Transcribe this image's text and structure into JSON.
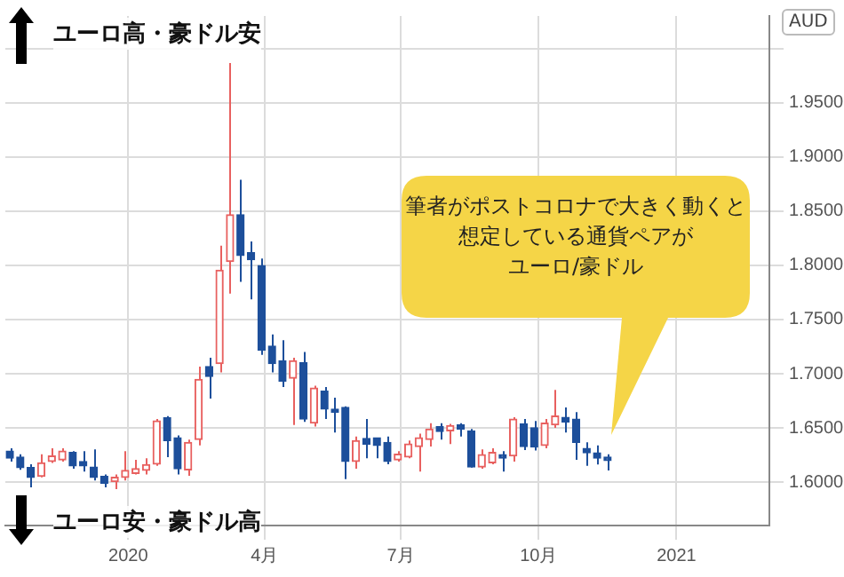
{
  "chart_data": {
    "type": "candlestick",
    "ylabel": "AUD",
    "annotations": [
      "ユーロ高・豪ドル安",
      "ユーロ安・豪ドル高",
      "筆者がポストコロナで大きく動くと",
      "想定している通貨ペアが",
      "ユーロ/豪ドル"
    ],
    "x": [
      "2019-10-14",
      "2019-10-21",
      "2019-10-28",
      "2019-11-04",
      "2019-11-11",
      "2019-11-18",
      "2019-11-25",
      "2019-12-02",
      "2019-12-09",
      "2019-12-16",
      "2019-12-23",
      "2019-12-30",
      "2020-01-06",
      "2020-01-13",
      "2020-01-20",
      "2020-01-27",
      "2020-02-03",
      "2020-02-10",
      "2020-02-17",
      "2020-02-24",
      "2020-03-02",
      "2020-03-09",
      "2020-03-16",
      "2020-03-23",
      "2020-03-30",
      "2020-04-06",
      "2020-04-13",
      "2020-04-20",
      "2020-04-27",
      "2020-05-04",
      "2020-05-11",
      "2020-05-18",
      "2020-05-25",
      "2020-06-01",
      "2020-06-08",
      "2020-06-15",
      "2020-06-22",
      "2020-06-29",
      "2020-07-06",
      "2020-07-13",
      "2020-07-20",
      "2020-07-27",
      "2020-08-03",
      "2020-08-10",
      "2020-08-17",
      "2020-08-24",
      "2020-08-31",
      "2020-09-07",
      "2020-09-14",
      "2020-09-21",
      "2020-09-28",
      "2020-10-05",
      "2020-10-12",
      "2020-10-19",
      "2020-10-26",
      "2020-11-02",
      "2020-11-09",
      "2020-11-16"
    ],
    "ohlc": [
      [
        1.6286,
        1.6312,
        1.6189,
        1.6221
      ],
      [
        1.6231,
        1.6258,
        1.6113,
        1.6134
      ],
      [
        1.6134,
        1.6166,
        1.5952,
        1.6044
      ],
      [
        1.6054,
        1.6258,
        1.6044,
        1.6178
      ],
      [
        1.619,
        1.6312,
        1.6178,
        1.6242
      ],
      [
        1.6205,
        1.6312,
        1.619,
        1.6286
      ],
      [
        1.6275,
        1.6286,
        1.6124,
        1.615
      ],
      [
        1.619,
        1.6286,
        1.6097,
        1.615
      ],
      [
        1.614,
        1.6302,
        1.6016,
        1.6044
      ],
      [
        1.6054,
        1.607,
        1.5952,
        1.5989
      ],
      [
        1.6005,
        1.607,
        1.5935,
        1.6044
      ],
      [
        1.6044,
        1.6286,
        1.6016,
        1.6108
      ],
      [
        1.6081,
        1.6205,
        1.607,
        1.6124
      ],
      [
        1.6108,
        1.6221,
        1.607,
        1.6162
      ],
      [
        1.6166,
        1.6582,
        1.615,
        1.6565
      ],
      [
        1.6593,
        1.6609,
        1.6231,
        1.6383
      ],
      [
        1.6409,
        1.6431,
        1.607,
        1.6124
      ],
      [
        1.6113,
        1.6393,
        1.6059,
        1.6367
      ],
      [
        1.6393,
        1.7066,
        1.6339,
        1.6948
      ],
      [
        1.7066,
        1.7147,
        1.6771,
        1.6974
      ],
      [
        1.7093,
        1.8181,
        1.7013,
        1.7955
      ],
      [
        1.8036,
        1.9866,
        1.774,
        1.8467
      ],
      [
        1.8467,
        1.879,
        1.7847,
        1.809
      ],
      [
        1.8116,
        1.822,
        1.7685,
        1.8052
      ],
      [
        1.7998,
        1.8063,
        1.7174,
        1.7217
      ],
      [
        1.7255,
        1.7362,
        1.7013,
        1.7093
      ],
      [
        1.712,
        1.7309,
        1.6877,
        1.6932
      ],
      [
        1.6958,
        1.7147,
        1.6528,
        1.712
      ],
      [
        1.7104,
        1.72,
        1.6555,
        1.6582
      ],
      [
        1.6544,
        1.6889,
        1.6512,
        1.6867
      ],
      [
        1.684,
        1.6877,
        1.6582,
        1.6674
      ],
      [
        1.6674,
        1.678,
        1.6457,
        1.6646
      ],
      [
        1.669,
        1.67,
        1.6027,
        1.619
      ],
      [
        1.619,
        1.642,
        1.6124,
        1.6383
      ],
      [
        1.6404,
        1.6582,
        1.6221,
        1.6351
      ],
      [
        1.6409,
        1.6409,
        1.6221,
        1.6339
      ],
      [
        1.6367,
        1.642,
        1.6166,
        1.619
      ],
      [
        1.6205,
        1.6286,
        1.619,
        1.6258
      ],
      [
        1.6231,
        1.6383,
        1.6221,
        1.6351
      ],
      [
        1.6328,
        1.6447,
        1.6097,
        1.6409
      ],
      [
        1.6393,
        1.6544,
        1.6328,
        1.649
      ],
      [
        1.6512,
        1.6544,
        1.6393,
        1.6468
      ],
      [
        1.6473,
        1.6538,
        1.6351,
        1.6522
      ],
      [
        1.6528,
        1.6544,
        1.642,
        1.649
      ],
      [
        1.6473,
        1.649,
        1.6134,
        1.614
      ],
      [
        1.614,
        1.6302,
        1.6124,
        1.6253
      ],
      [
        1.6178,
        1.6312,
        1.6166,
        1.6275
      ],
      [
        1.6253,
        1.6286,
        1.6097,
        1.6221
      ],
      [
        1.6242,
        1.6598,
        1.619,
        1.6582
      ],
      [
        1.6538,
        1.6582,
        1.6296,
        1.6328
      ],
      [
        1.6501,
        1.6565,
        1.6291,
        1.6323
      ],
      [
        1.6339,
        1.6582,
        1.6312,
        1.6544
      ],
      [
        1.6528,
        1.6851,
        1.6501,
        1.6609
      ],
      [
        1.6598,
        1.669,
        1.6457,
        1.6555
      ],
      [
        1.6582,
        1.6646,
        1.6205,
        1.6367
      ],
      [
        1.6312,
        1.6367,
        1.615,
        1.627
      ],
      [
        1.627,
        1.6339,
        1.6162,
        1.6221
      ],
      [
        1.6231,
        1.6258,
        1.6108,
        1.6199
      ]
    ],
    "colors": [
      "#1d4f9b",
      "#1d4f9b",
      "#1d4f9b",
      "#e8605f",
      "#e8605f",
      "#e8605f",
      "#1d4f9b",
      "#1d4f9b",
      "#1d4f9b",
      "#1d4f9b",
      "#e8605f",
      "#e8605f",
      "#e8605f",
      "#e8605f",
      "#e8605f",
      "#1d4f9b",
      "#1d4f9b",
      "#e8605f",
      "#e8605f",
      "#1d4f9b",
      "#e8605f",
      "#e8605f",
      "#1d4f9b",
      "#1d4f9b",
      "#1d4f9b",
      "#1d4f9b",
      "#1d4f9b",
      "#e8605f",
      "#1d4f9b",
      "#e8605f",
      "#1d4f9b",
      "#1d4f9b",
      "#1d4f9b",
      "#e8605f",
      "#1d4f9b",
      "#1d4f9b",
      "#1d4f9b",
      "#e8605f",
      "#e8605f",
      "#e8605f",
      "#e8605f",
      "#1d4f9b",
      "#e8605f",
      "#1d4f9b",
      "#1d4f9b",
      "#e8605f",
      "#e8605f",
      "#1d4f9b",
      "#e8605f",
      "#1d4f9b",
      "#1d4f9b",
      "#e8605f",
      "#e8605f",
      "#1d4f9b",
      "#1d4f9b",
      "#1d4f9b",
      "#1d4f9b",
      "#1d4f9b"
    ],
    "xlim": [
      "2019-10-11",
      "2021-03-04"
    ],
    "xticks": [
      {
        "value": "2020-01-01",
        "label": "2020"
      },
      {
        "value": "2020-04-01",
        "label": "4月"
      },
      {
        "value": "2020-07-01",
        "label": "7月"
      },
      {
        "value": "2020-10-01",
        "label": "10月"
      },
      {
        "value": "2021-01-01",
        "label": "2021"
      }
    ],
    "ylim": [
      1.56,
      2.03
    ],
    "yticks": [
      {
        "value": 1.6,
        "label": "1.6000"
      },
      {
        "value": 1.65,
        "label": "1.6500"
      },
      {
        "value": 1.7,
        "label": "1.7000"
      },
      {
        "value": 1.75,
        "label": "1.7500"
      },
      {
        "value": 1.8,
        "label": "1.8000"
      },
      {
        "value": 1.85,
        "label": "1.8500"
      },
      {
        "value": 1.9,
        "label": "1.9000"
      },
      {
        "value": 1.95,
        "label": "1.9500"
      },
      {
        "value": 2.0,
        "label": null
      }
    ],
    "grid": true
  }
}
